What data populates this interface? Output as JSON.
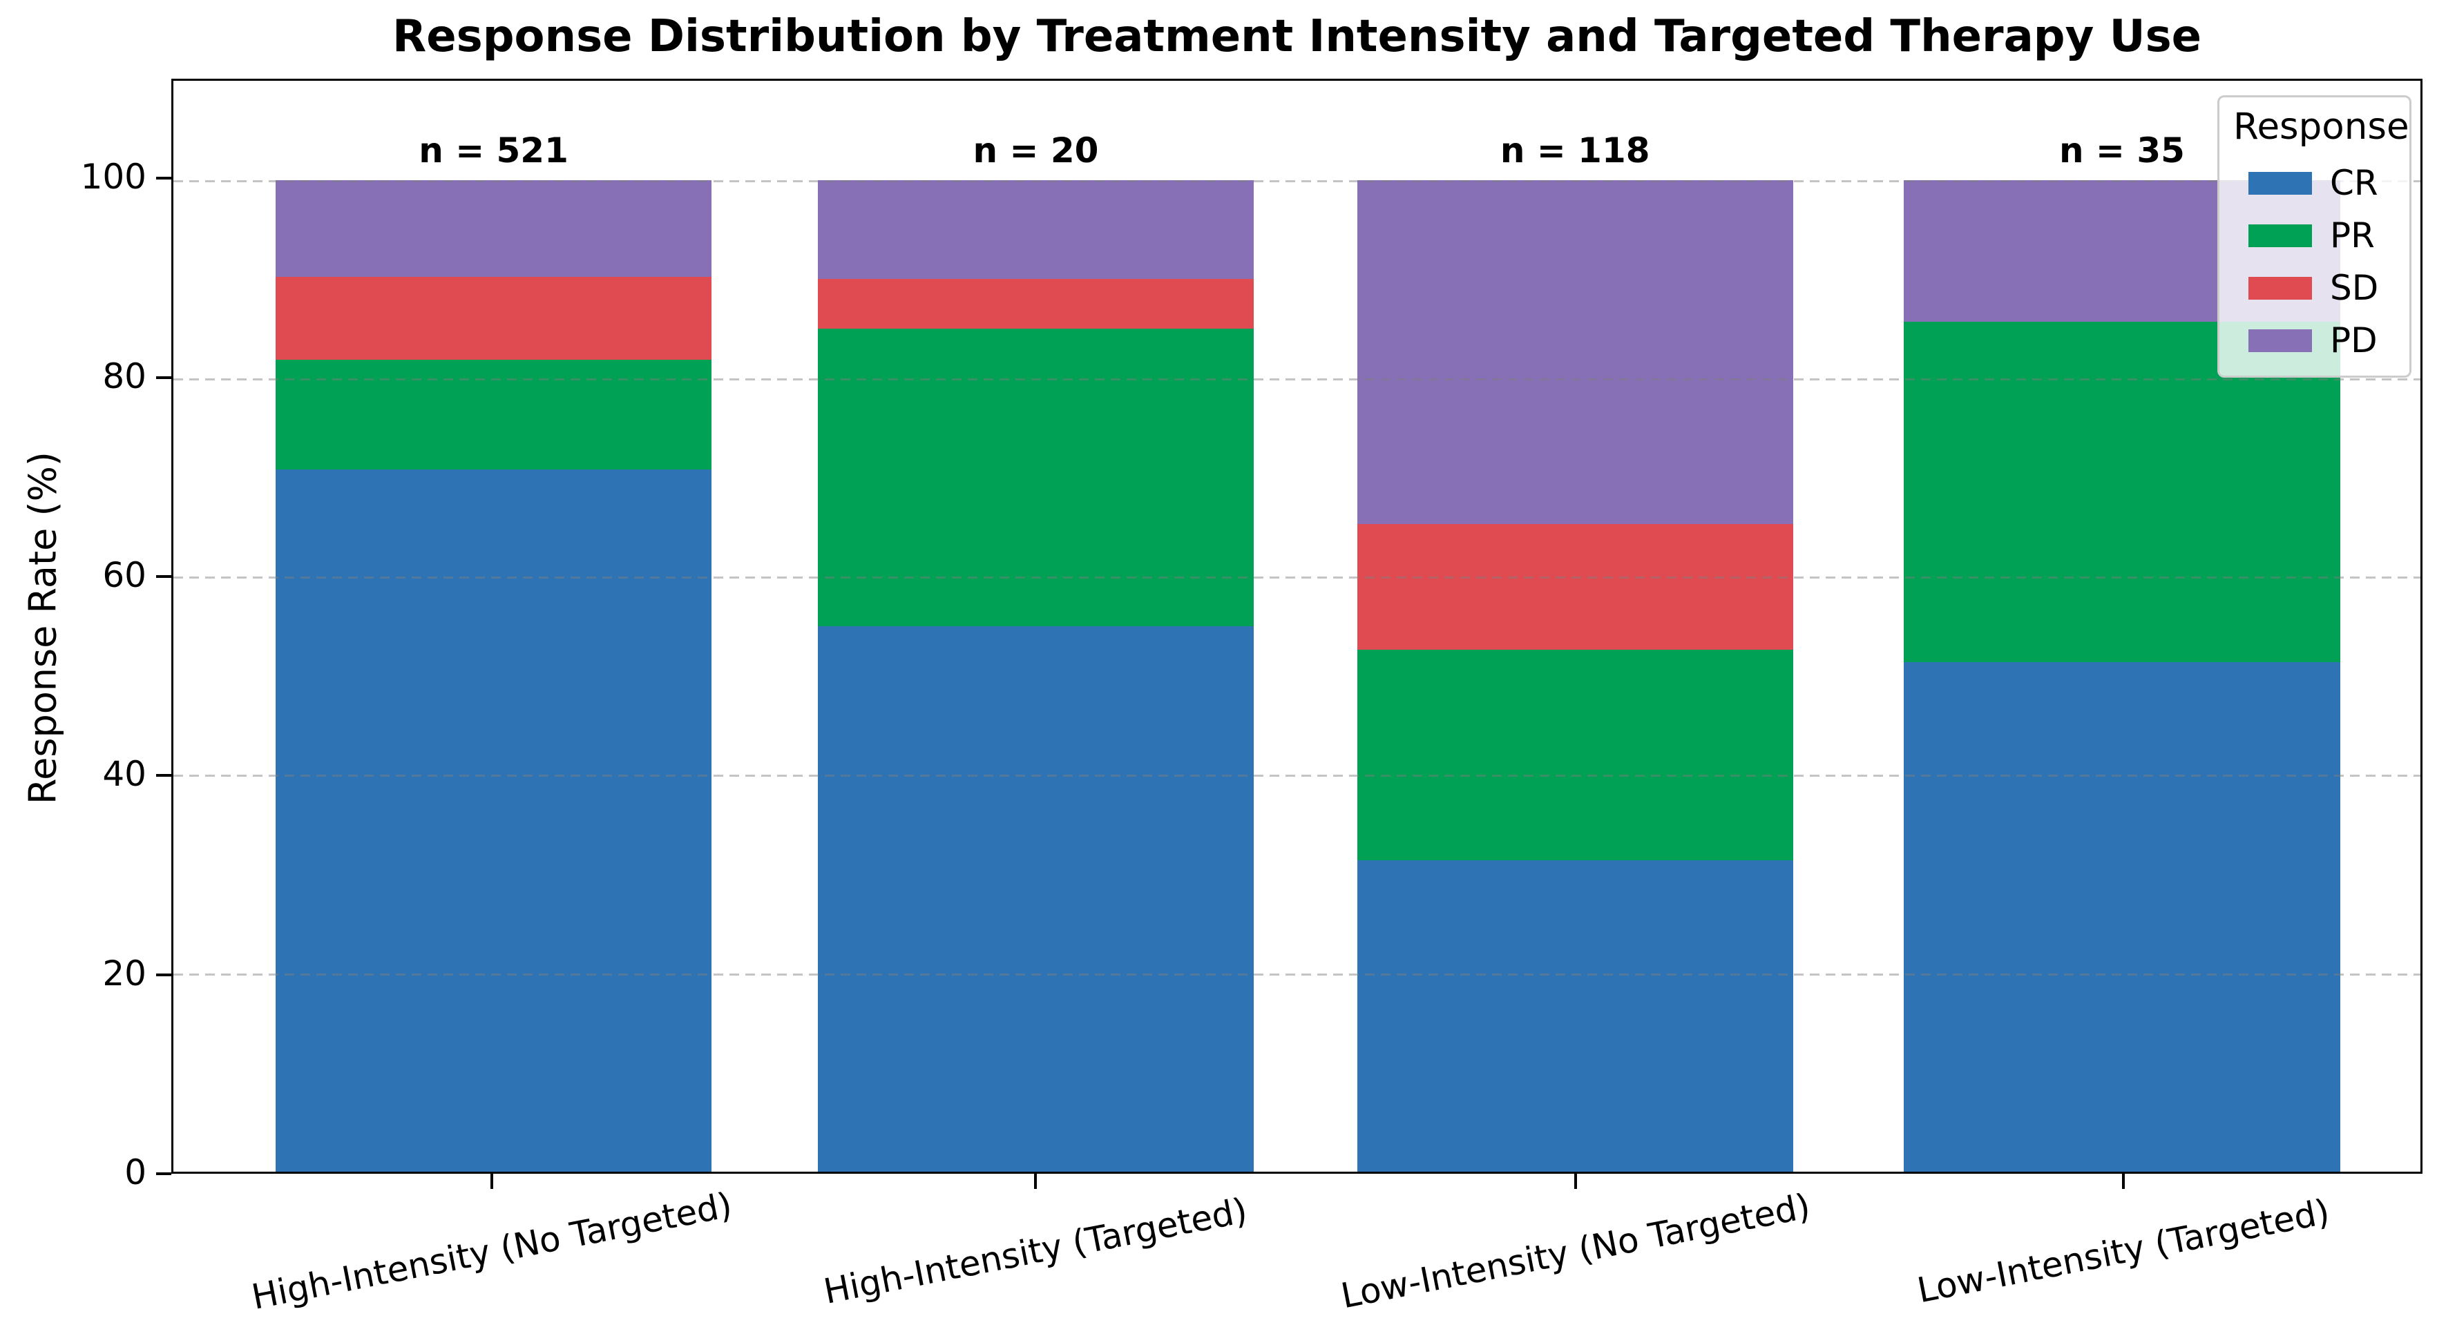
{
  "chart_data": {
    "type": "bar",
    "stacked": true,
    "normalized_percent": true,
    "title": "Response Distribution by Treatment Intensity and Targeted Therapy Use",
    "xlabel": "",
    "ylabel": "Response Rate (%)",
    "ylim": [
      0,
      110
    ],
    "yticks": [
      0,
      20,
      40,
      60,
      80,
      100
    ],
    "grid": {
      "axis": "y",
      "style": "dashed",
      "color": "#7d7d7d",
      "alpha": 0.45,
      "above_bars": true
    },
    "categories": [
      "High-Intensity (No Targeted)",
      "High-Intensity (Targeted)",
      "Low-Intensity (No Targeted)",
      "Low-Intensity (Targeted)"
    ],
    "bar_annotations": [
      "n = 521",
      "n = 20",
      "n = 118",
      "n = 35"
    ],
    "series": [
      {
        "name": "CR",
        "color": "#2E74B5",
        "values": [
          70.8,
          55.0,
          31.4,
          51.4
        ]
      },
      {
        "name": "PR",
        "color": "#00A055",
        "values": [
          11.1,
          30.0,
          21.2,
          34.3
        ]
      },
      {
        "name": "SD",
        "color": "#E04B51",
        "values": [
          8.3,
          5.0,
          12.7,
          0.0
        ]
      },
      {
        "name": "PD",
        "color": "#8770B6",
        "values": [
          9.8,
          10.0,
          34.7,
          14.3
        ]
      }
    ],
    "legend": {
      "title": "Response",
      "position": "upper right"
    }
  }
}
